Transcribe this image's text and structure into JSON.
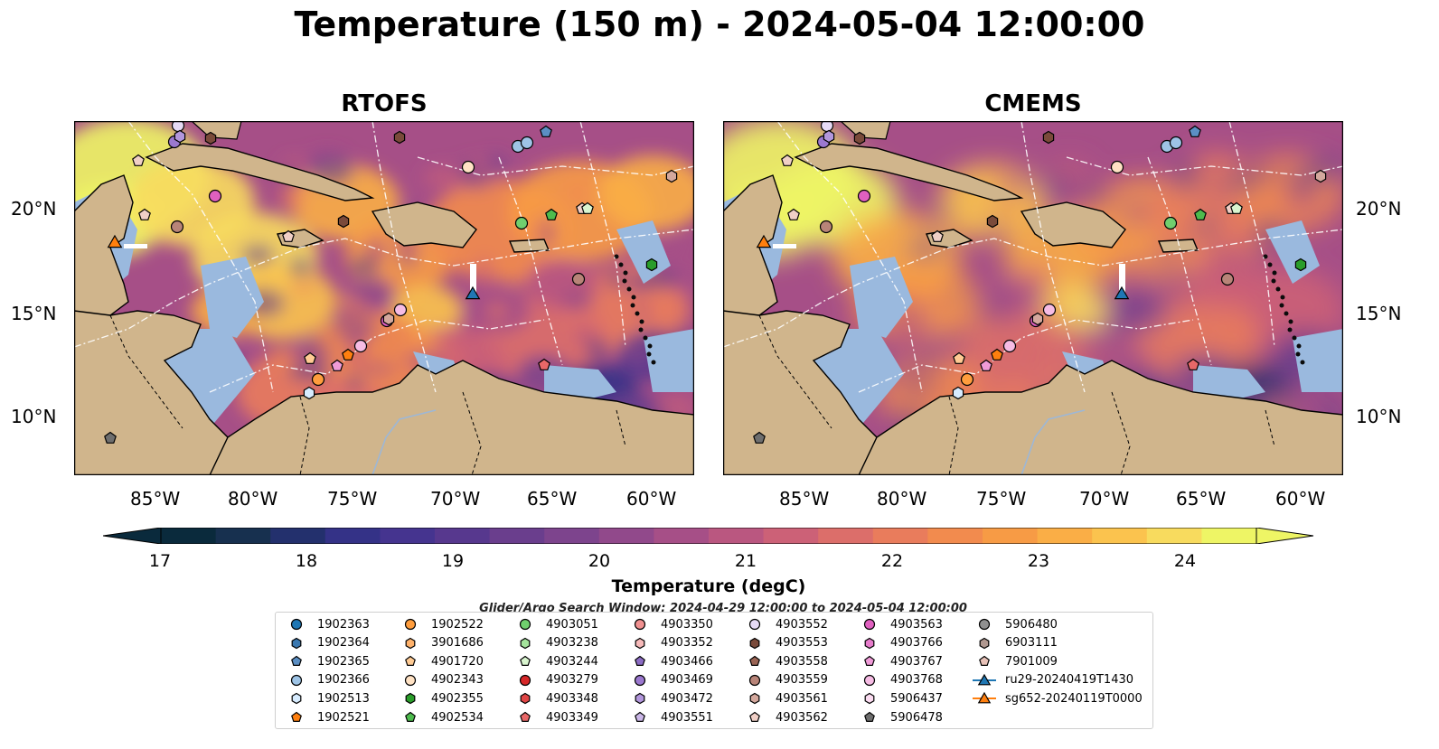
{
  "title": "Temperature (150 m) - 2024-05-04 12:00:00",
  "panels": [
    {
      "title": "RTOFS"
    },
    {
      "title": "CMEMS"
    }
  ],
  "axes": {
    "lat_ticks": [
      "20°N",
      "15°N",
      "10°N"
    ],
    "lon_ticks": [
      "85°W",
      "80°W",
      "75°W",
      "70°W",
      "65°W",
      "60°W"
    ]
  },
  "colorbar": {
    "label": "Temperature (degC)",
    "ticks": [
      "17",
      "18",
      "19",
      "20",
      "21",
      "22",
      "23",
      "24"
    ],
    "colors": [
      "#0a2a3c",
      "#17304f",
      "#23306d",
      "#343287",
      "#45348f",
      "#57388e",
      "#6a3e8d",
      "#7d448d",
      "#91498b",
      "#a64f87",
      "#ba5780",
      "#cc6177",
      "#dc6e6a",
      "#e97c5c",
      "#f28b4e",
      "#f79b45",
      "#faae46",
      "#fbc34e",
      "#f8db5e",
      "#eef565"
    ]
  },
  "search_window": "Glider/Argo Search Window: 2024-04-29 12:00:00 to 2024-05-04 12:00:00",
  "legend": [
    {
      "label": "1902363",
      "shape": "circle",
      "color": "#1f77b4"
    },
    {
      "label": "1902364",
      "shape": "hexagon",
      "color": "#3a78b0"
    },
    {
      "label": "1902365",
      "shape": "pentagon",
      "color": "#5b8fc4"
    },
    {
      "label": "1902366",
      "shape": "circle",
      "color": "#9ec4e6"
    },
    {
      "label": "1902513",
      "shape": "hexagon",
      "color": "#d7ecff"
    },
    {
      "label": "1902521",
      "shape": "pentagon",
      "color": "#ff7f0e"
    },
    {
      "label": "1902522",
      "shape": "circle",
      "color": "#ff9d3d"
    },
    {
      "label": "3901686",
      "shape": "hexagon",
      "color": "#ffb26b"
    },
    {
      "label": "4901720",
      "shape": "pentagon",
      "color": "#ffcb94"
    },
    {
      "label": "4902343",
      "shape": "circle",
      "color": "#ffe2c4"
    },
    {
      "label": "4902355",
      "shape": "hexagon",
      "color": "#2a9d2a"
    },
    {
      "label": "4902534",
      "shape": "pentagon",
      "color": "#4dbb4d"
    },
    {
      "label": "4903051",
      "shape": "circle",
      "color": "#70cf6e"
    },
    {
      "label": "4903238",
      "shape": "hexagon",
      "color": "#a4e39c"
    },
    {
      "label": "4903244",
      "shape": "pentagon",
      "color": "#d9f5cf"
    },
    {
      "label": "4903279",
      "shape": "circle",
      "color": "#d62728"
    },
    {
      "label": "4903348",
      "shape": "hexagon",
      "color": "#e04646"
    },
    {
      "label": "4903349",
      "shape": "pentagon",
      "color": "#e86868"
    },
    {
      "label": "4903350",
      "shape": "circle",
      "color": "#f09090"
    },
    {
      "label": "4903352",
      "shape": "hexagon",
      "color": "#f7baba"
    },
    {
      "label": "4903466",
      "shape": "pentagon",
      "color": "#8c6cc4"
    },
    {
      "label": "4903469",
      "shape": "circle",
      "color": "#9b78cf"
    },
    {
      "label": "4903472",
      "shape": "hexagon",
      "color": "#b296dc"
    },
    {
      "label": "4903551",
      "shape": "pentagon",
      "color": "#cbb7e8"
    },
    {
      "label": "4903552",
      "shape": "circle",
      "color": "#e6daf5"
    },
    {
      "label": "4903553",
      "shape": "hexagon",
      "color": "#7a4a3a"
    },
    {
      "label": "4903558",
      "shape": "pentagon",
      "color": "#9a6454"
    },
    {
      "label": "4903559",
      "shape": "circle",
      "color": "#b88478"
    },
    {
      "label": "4903561",
      "shape": "hexagon",
      "color": "#d4a89d"
    },
    {
      "label": "4903562",
      "shape": "pentagon",
      "color": "#f0cfc6"
    },
    {
      "label": "4903563",
      "shape": "circle",
      "color": "#e060c0"
    },
    {
      "label": "4903766",
      "shape": "hexagon",
      "color": "#e77ccc"
    },
    {
      "label": "4903767",
      "shape": "pentagon",
      "color": "#f09bd8"
    },
    {
      "label": "4903768",
      "shape": "circle",
      "color": "#f6bce4"
    },
    {
      "label": "5906437",
      "shape": "hexagon",
      "color": "#fbdcf1"
    },
    {
      "label": "5906478",
      "shape": "pentagon",
      "color": "#6e6e6e"
    },
    {
      "label": "5906480",
      "shape": "circle",
      "color": "#909090"
    },
    {
      "label": "6903111",
      "shape": "hexagon",
      "color": "#b09890"
    },
    {
      "label": "7901009",
      "shape": "pentagon",
      "color": "#e8c2b8"
    },
    {
      "label": "ru29-20240419T1430",
      "shape": "triangle-line",
      "color": "#1f77b4"
    },
    {
      "label": "sg652-20240119T0000",
      "shape": "triangle-line",
      "color": "#ff7f0e"
    }
  ]
}
